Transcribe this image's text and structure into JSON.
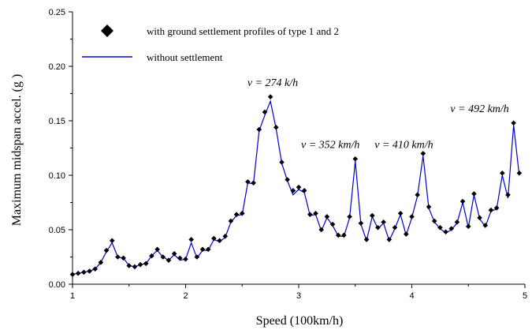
{
  "chart_data": {
    "type": "line",
    "xlabel": "Speed (100km/h)",
    "ylabel": "Maximum midspan accel. (g )",
    "xlim": [
      1,
      5
    ],
    "ylim": [
      0,
      0.25
    ],
    "xticks": [
      "1",
      "2",
      "3",
      "4",
      "5"
    ],
    "yticks": [
      "0.00",
      "0.05",
      "0.10",
      "0.15",
      "0.20",
      "0.25"
    ],
    "grid": false,
    "legend_position": "top-left",
    "series": [
      {
        "name": "with ground settlement profiles of type 1 and 2",
        "style": "diamond-markers",
        "color": "#000000",
        "x": [
          1.0,
          1.05,
          1.1,
          1.15,
          1.2,
          1.25,
          1.3,
          1.35,
          1.4,
          1.45,
          1.5,
          1.55,
          1.6,
          1.65,
          1.7,
          1.75,
          1.8,
          1.85,
          1.9,
          1.95,
          2.0,
          2.05,
          2.1,
          2.15,
          2.2,
          2.25,
          2.3,
          2.35,
          2.4,
          2.45,
          2.5,
          2.55,
          2.6,
          2.65,
          2.7,
          2.75,
          2.8,
          2.85,
          2.9,
          2.95,
          3.0,
          3.05,
          3.1,
          3.15,
          3.2,
          3.25,
          3.3,
          3.35,
          3.4,
          3.45,
          3.5,
          3.55,
          3.6,
          3.65,
          3.7,
          3.75,
          3.8,
          3.85,
          3.9,
          3.95,
          4.0,
          4.05,
          4.1,
          4.15,
          4.2,
          4.25,
          4.3,
          4.35,
          4.4,
          4.45,
          4.5,
          4.55,
          4.6,
          4.65,
          4.7,
          4.75,
          4.8,
          4.85,
          4.9,
          4.95
        ],
        "values": [
          0.009,
          0.01,
          0.011,
          0.012,
          0.014,
          0.02,
          0.031,
          0.04,
          0.025,
          0.024,
          0.017,
          0.016,
          0.018,
          0.019,
          0.026,
          0.032,
          0.025,
          0.022,
          0.028,
          0.024,
          0.023,
          0.041,
          0.025,
          0.032,
          0.032,
          0.042,
          0.04,
          0.044,
          0.058,
          0.064,
          0.065,
          0.094,
          0.093,
          0.142,
          0.158,
          0.172,
          0.144,
          0.112,
          0.096,
          0.086,
          0.089,
          0.086,
          0.064,
          0.065,
          0.05,
          0.062,
          0.055,
          0.045,
          0.045,
          0.062,
          0.115,
          0.056,
          0.041,
          0.063,
          0.052,
          0.057,
          0.041,
          0.052,
          0.065,
          0.046,
          0.062,
          0.082,
          0.12,
          0.071,
          0.058,
          0.052,
          0.048,
          0.051,
          0.057,
          0.076,
          0.053,
          0.083,
          0.061,
          0.054,
          0.068,
          0.07,
          0.102,
          0.082,
          0.148,
          0.102
        ]
      },
      {
        "name": "without settlement",
        "style": "line",
        "color": "#0000cc",
        "x": [
          1.0,
          1.05,
          1.1,
          1.15,
          1.2,
          1.25,
          1.3,
          1.35,
          1.4,
          1.45,
          1.5,
          1.55,
          1.6,
          1.65,
          1.7,
          1.75,
          1.8,
          1.85,
          1.9,
          1.95,
          2.0,
          2.05,
          2.1,
          2.15,
          2.2,
          2.25,
          2.3,
          2.35,
          2.4,
          2.45,
          2.5,
          2.55,
          2.6,
          2.65,
          2.7,
          2.75,
          2.8,
          2.85,
          2.9,
          2.95,
          3.0,
          3.05,
          3.1,
          3.15,
          3.2,
          3.25,
          3.3,
          3.35,
          3.4,
          3.45,
          3.5,
          3.55,
          3.6,
          3.65,
          3.7,
          3.75,
          3.8,
          3.85,
          3.9,
          3.95,
          4.0,
          4.05,
          4.1,
          4.15,
          4.2,
          4.25,
          4.3,
          4.35,
          4.4,
          4.45,
          4.5,
          4.55,
          4.6,
          4.65,
          4.7,
          4.75,
          4.8,
          4.85,
          4.9,
          4.95
        ],
        "values": [
          0.009,
          0.01,
          0.011,
          0.012,
          0.014,
          0.02,
          0.03,
          0.038,
          0.025,
          0.024,
          0.017,
          0.016,
          0.018,
          0.019,
          0.026,
          0.031,
          0.025,
          0.022,
          0.027,
          0.022,
          0.023,
          0.038,
          0.024,
          0.031,
          0.031,
          0.041,
          0.039,
          0.043,
          0.057,
          0.063,
          0.064,
          0.093,
          0.092,
          0.141,
          0.155,
          0.168,
          0.143,
          0.111,
          0.095,
          0.082,
          0.087,
          0.084,
          0.063,
          0.064,
          0.049,
          0.061,
          0.054,
          0.044,
          0.044,
          0.061,
          0.113,
          0.055,
          0.04,
          0.062,
          0.051,
          0.056,
          0.04,
          0.051,
          0.064,
          0.045,
          0.061,
          0.081,
          0.118,
          0.07,
          0.057,
          0.051,
          0.047,
          0.05,
          0.056,
          0.075,
          0.052,
          0.082,
          0.06,
          0.053,
          0.067,
          0.069,
          0.1,
          0.079,
          0.146,
          0.1
        ]
      }
    ],
    "annotations": [
      {
        "text": "v = 274 k/h",
        "x": 2.77,
        "y": 0.182
      },
      {
        "text": "v = 352 km/h",
        "x": 3.28,
        "y": 0.125
      },
      {
        "text": "v = 410 km/h",
        "x": 3.93,
        "y": 0.125
      },
      {
        "text": "v = 492 km/h",
        "x": 4.6,
        "y": 0.158
      }
    ]
  }
}
